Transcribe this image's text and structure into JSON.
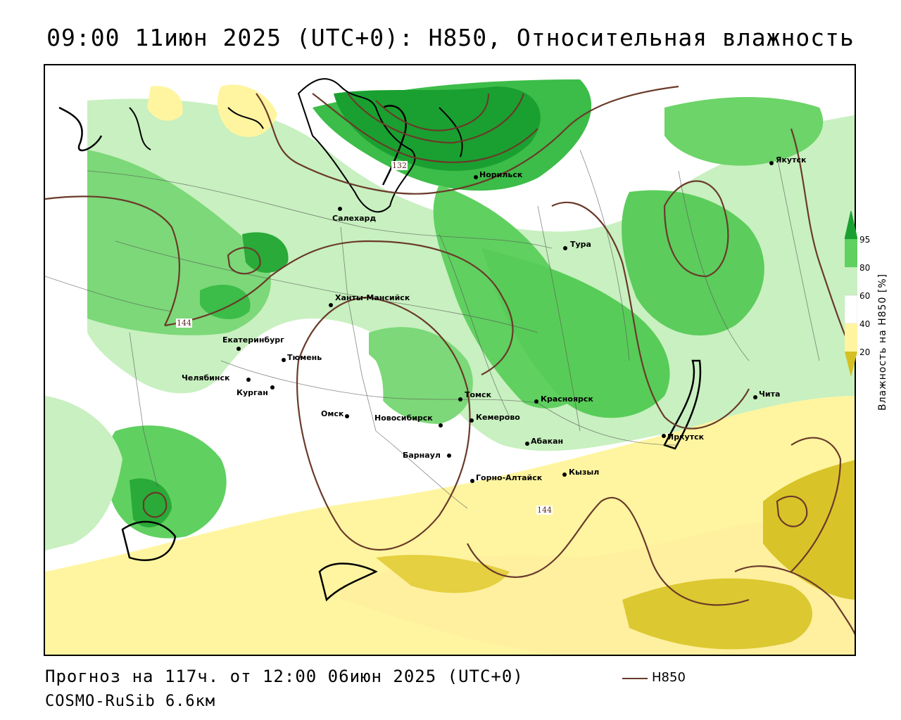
{
  "title": "09:00 11июн 2025 (UTC+0): H850, Относительная влажность",
  "forecast_line": "Прогноз на 117ч. от 12:00 06июн 2025 (UTC+0)",
  "model_line": "COSMO-RuSib 6.6км",
  "line_legend": {
    "label": "H850",
    "color": "#6a3a2a"
  },
  "colorbar": {
    "title": "Влажность на H850 [%]",
    "ticks": [
      "95",
      "80",
      "60",
      "40",
      "20"
    ],
    "colors": {
      "very_dry": "#d4c020",
      "dry": "#fff5a0",
      "mid": "#ffffff",
      "moist_light": "#c8f0c0",
      "moist": "#60d060",
      "very_moist": "#1aa030"
    }
  },
  "contour_labels": [
    "132",
    "144",
    "144"
  ],
  "cities": [
    {
      "name": "Якутск"
    },
    {
      "name": "Норильск"
    },
    {
      "name": "Салехард"
    },
    {
      "name": "Тура"
    },
    {
      "name": "Ханты-Мансийск"
    },
    {
      "name": "Екатеринбург"
    },
    {
      "name": "Тюмень"
    },
    {
      "name": "Челябинск"
    },
    {
      "name": "Курган"
    },
    {
      "name": "Омск"
    },
    {
      "name": "Новосибирск"
    },
    {
      "name": "Томск"
    },
    {
      "name": "Кемерово"
    },
    {
      "name": "Красноярск"
    },
    {
      "name": "Барнаул"
    },
    {
      "name": "Абакан"
    },
    {
      "name": "Горно-Алтайск"
    },
    {
      "name": "Кызыл"
    },
    {
      "name": "Иркутск"
    },
    {
      "name": "Чита"
    }
  ]
}
